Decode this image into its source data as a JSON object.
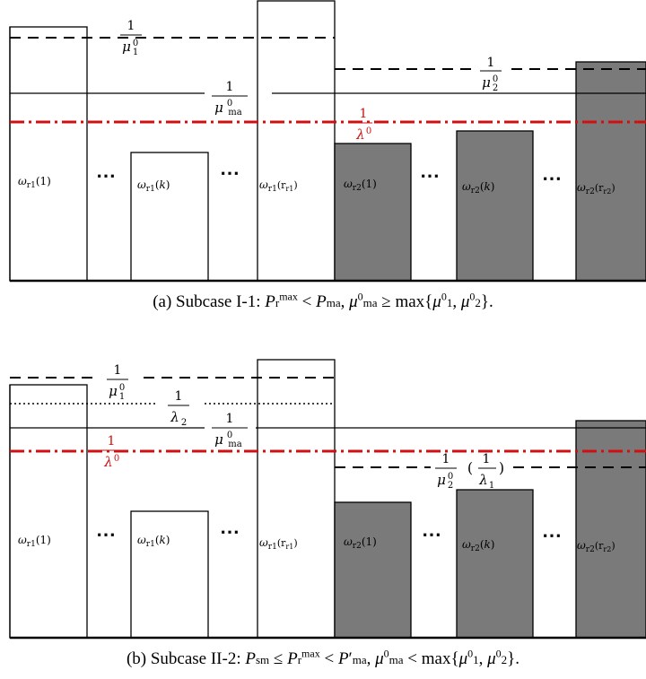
{
  "panels": [
    {
      "id": "a",
      "bar_labels": {
        "w_r1_1": "ω_r1(1)",
        "w_r1_k": "ω_r1(k)",
        "w_r1_r1": "ω_r1(r_r1)",
        "w_r2_1": "ω_r2(1)",
        "w_r2_k": "ω_r2(k)",
        "w_r2_r2": "ω_r2(r_r2)"
      },
      "levels": {
        "mu1": "1/μ_1^0",
        "mu2": "1/μ_2^0",
        "muma": "1/μ_ma^0",
        "lambda": "1/λ^0"
      },
      "ellipsis": "⋯",
      "caption": {
        "text": "(a) Subcase I-1: P_r^max < P_ma, μ_ma^0 ≥ max{μ_1^0, μ_2^0}."
      }
    },
    {
      "id": "b",
      "bar_labels": {
        "w_r1_1": "ω_r1(1)",
        "w_r1_k": "ω_r1(k)",
        "w_r1_r1": "ω_r1(r_r1)",
        "w_r2_1": "ω_r2(1)",
        "w_r2_k": "ω_r2(k)",
        "w_r2_r2": "ω_r2(r_r2)"
      },
      "levels": {
        "mu1": "1/μ_1^0",
        "lambda2": "1/λ_2",
        "muma": "1/μ_ma^0",
        "lambda": "1/λ^0",
        "mu2_lambda1": "1/μ_2^0 (1/λ_1)"
      },
      "ellipsis": "⋯",
      "caption": {
        "text": "(b) Subcase II-2: P_sm ≤ P_r^max < P'_ma, μ_ma^0 < max{μ_1^0, μ_2^0}."
      }
    }
  ],
  "colors": {
    "red_level": "#d01010",
    "filled_bar": "#7a7a7a",
    "outline": "#000000"
  }
}
